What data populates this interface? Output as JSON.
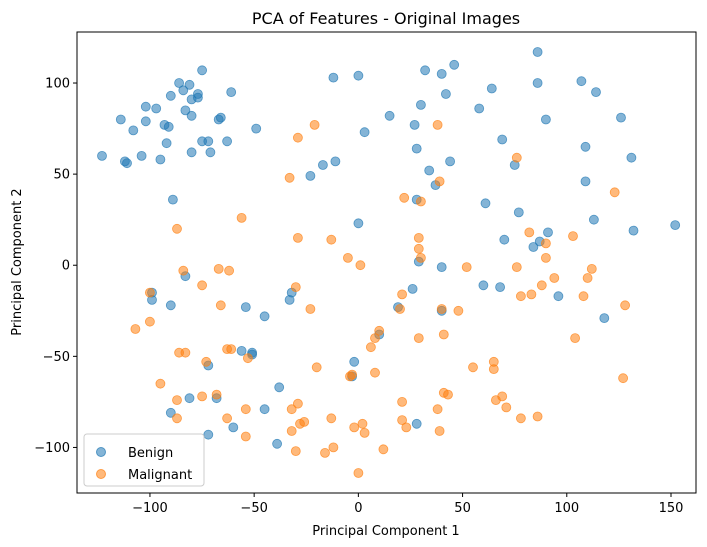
{
  "chart_data": {
    "type": "scatter",
    "title": "PCA of Features - Original Images",
    "xlabel": "Principal Component 1",
    "ylabel": "Principal Component 2",
    "xlim": [
      -135,
      162
    ],
    "ylim": [
      -125,
      128
    ],
    "xticks": [
      -100,
      -50,
      0,
      50,
      100,
      150
    ],
    "yticks": [
      -100,
      -50,
      0,
      50,
      100
    ],
    "grid": false,
    "legend_position": "lower-left",
    "series": [
      {
        "name": "Benign",
        "color": "#1f77b4",
        "points": [
          [
            -123,
            60
          ],
          [
            -114,
            80
          ],
          [
            -112,
            57
          ],
          [
            -111,
            56
          ],
          [
            -108,
            74
          ],
          [
            -104,
            60
          ],
          [
            -102,
            87
          ],
          [
            -102,
            79
          ],
          [
            -97,
            86
          ],
          [
            -95,
            58
          ],
          [
            -93,
            77
          ],
          [
            -92,
            67
          ],
          [
            -91,
            76
          ],
          [
            -90,
            93
          ],
          [
            -89,
            36
          ],
          [
            -86,
            100
          ],
          [
            -84,
            96
          ],
          [
            -83,
            85
          ],
          [
            -81,
            99
          ],
          [
            -80,
            82
          ],
          [
            -80,
            91
          ],
          [
            -80,
            62
          ],
          [
            -77,
            94
          ],
          [
            -77,
            92
          ],
          [
            -75,
            107
          ],
          [
            -75,
            68
          ],
          [
            -72,
            68
          ],
          [
            -71,
            62
          ],
          [
            -67,
            80
          ],
          [
            -66,
            81
          ],
          [
            -63,
            68
          ],
          [
            -61,
            95
          ],
          [
            -49,
            75
          ],
          [
            -12,
            103
          ],
          [
            -11,
            57
          ],
          [
            -17,
            55
          ],
          [
            -23,
            49
          ],
          [
            0,
            104
          ],
          [
            3,
            73
          ],
          [
            15,
            82
          ],
          [
            27,
            77
          ],
          [
            30,
            88
          ],
          [
            32,
            107
          ],
          [
            40,
            105
          ],
          [
            42,
            94
          ],
          [
            46,
            110
          ],
          [
            28,
            64
          ],
          [
            34,
            52
          ],
          [
            37,
            44
          ],
          [
            28,
            36
          ],
          [
            44,
            57
          ],
          [
            58,
            86
          ],
          [
            64,
            97
          ],
          [
            69,
            69
          ],
          [
            75,
            55
          ],
          [
            86,
            117
          ],
          [
            86,
            100
          ],
          [
            90,
            80
          ],
          [
            107,
            101
          ],
          [
            114,
            95
          ],
          [
            109,
            65
          ],
          [
            109,
            46
          ],
          [
            126,
            81
          ],
          [
            131,
            59
          ],
          [
            152,
            22
          ],
          [
            -99,
            -15
          ],
          [
            -99,
            -19
          ],
          [
            -90,
            -22
          ],
          [
            -83,
            -6
          ],
          [
            0,
            23
          ],
          [
            29,
            2
          ],
          [
            40,
            -1
          ],
          [
            26,
            -13
          ],
          [
            19,
            -23
          ],
          [
            40,
            -25
          ],
          [
            -32,
            -15
          ],
          [
            -33,
            -19
          ],
          [
            -54,
            -23
          ],
          [
            -45,
            -28
          ],
          [
            61,
            34
          ],
          [
            77,
            29
          ],
          [
            113,
            25
          ],
          [
            132,
            19
          ],
          [
            91,
            18
          ],
          [
            87,
            13
          ],
          [
            84,
            10
          ],
          [
            70,
            14
          ],
          [
            68,
            -12
          ],
          [
            60,
            -11
          ],
          [
            96,
            -17
          ],
          [
            118,
            -29
          ],
          [
            -56,
            -47
          ],
          [
            -51,
            -49
          ],
          [
            -72,
            -55
          ],
          [
            -68,
            -73
          ],
          [
            -81,
            -73
          ],
          [
            -90,
            -81
          ],
          [
            -72,
            -93
          ],
          [
            -60,
            -89
          ],
          [
            -45,
            -79
          ],
          [
            -38,
            -67
          ],
          [
            -39,
            -98
          ],
          [
            -2,
            -53
          ],
          [
            -3,
            -61
          ],
          [
            10,
            -38
          ],
          [
            28,
            -87
          ],
          [
            -51,
            -48
          ]
        ]
      },
      {
        "name": "Malignant",
        "color": "#ff7f0e",
        "points": [
          [
            -29,
            70
          ],
          [
            -21,
            77
          ],
          [
            -33,
            48
          ],
          [
            39,
            46
          ],
          [
            38,
            77
          ],
          [
            76,
            59
          ],
          [
            123,
            40
          ],
          [
            22,
            37
          ],
          [
            30,
            35
          ],
          [
            -56,
            26
          ],
          [
            -87,
            20
          ],
          [
            -29,
            15
          ],
          [
            -13,
            14
          ],
          [
            -5,
            4
          ],
          [
            1,
            0
          ],
          [
            29,
            15
          ],
          [
            29,
            9
          ],
          [
            30,
            4
          ],
          [
            -100,
            -15
          ],
          [
            -84,
            -3
          ],
          [
            -75,
            -11
          ],
          [
            -67,
            -2
          ],
          [
            -62,
            -3
          ],
          [
            -30,
            -12
          ],
          [
            21,
            -16
          ],
          [
            52,
            -1
          ],
          [
            76,
            -1
          ],
          [
            82,
            18
          ],
          [
            90,
            12
          ],
          [
            90,
            4
          ],
          [
            103,
            16
          ],
          [
            94,
            -7
          ],
          [
            110,
            -7
          ],
          [
            112,
            -2
          ],
          [
            108,
            -17
          ],
          [
            128,
            -22
          ],
          [
            78,
            -17
          ],
          [
            83,
            -16
          ],
          [
            88,
            -11
          ],
          [
            -107,
            -35
          ],
          [
            -100,
            -31
          ],
          [
            -86,
            -48
          ],
          [
            -83,
            -48
          ],
          [
            -66,
            -22
          ],
          [
            -23,
            -24
          ],
          [
            20,
            -24
          ],
          [
            29,
            -40
          ],
          [
            40,
            -24
          ],
          [
            41,
            -38
          ],
          [
            48,
            -25
          ],
          [
            10,
            -36
          ],
          [
            8,
            -40
          ],
          [
            6,
            -45
          ],
          [
            -63,
            -46
          ],
          [
            -53,
            -51
          ],
          [
            -73,
            -53
          ],
          [
            -95,
            -65
          ],
          [
            -87,
            -74
          ],
          [
            -87,
            -84
          ],
          [
            -75,
            -72
          ],
          [
            -68,
            -71
          ],
          [
            -63,
            -84
          ],
          [
            -54,
            -79
          ],
          [
            -54,
            -94
          ],
          [
            -32,
            -79
          ],
          [
            -29,
            -76
          ],
          [
            -20,
            -56
          ],
          [
            -28,
            -87
          ],
          [
            -26,
            -86
          ],
          [
            -32,
            -91
          ],
          [
            -30,
            -102
          ],
          [
            -12,
            -100
          ],
          [
            -16,
            -103
          ],
          [
            -13,
            -84
          ],
          [
            -3,
            -60
          ],
          [
            -4,
            -61
          ],
          [
            8,
            -59
          ],
          [
            -2,
            -89
          ],
          [
            0,
            -114
          ],
          [
            2,
            -87
          ],
          [
            3,
            -92
          ],
          [
            12,
            -101
          ],
          [
            21,
            -75
          ],
          [
            21,
            -85
          ],
          [
            23,
            -89
          ],
          [
            39,
            -91
          ],
          [
            38,
            -79
          ],
          [
            41,
            -70
          ],
          [
            43,
            -71
          ],
          [
            55,
            -56
          ],
          [
            65,
            -53
          ],
          [
            65,
            -57
          ],
          [
            66,
            -74
          ],
          [
            69,
            -72
          ],
          [
            71,
            -78
          ],
          [
            78,
            -84
          ],
          [
            86,
            -83
          ],
          [
            104,
            -40
          ],
          [
            127,
            -62
          ],
          [
            -61,
            -46
          ]
        ]
      }
    ]
  }
}
